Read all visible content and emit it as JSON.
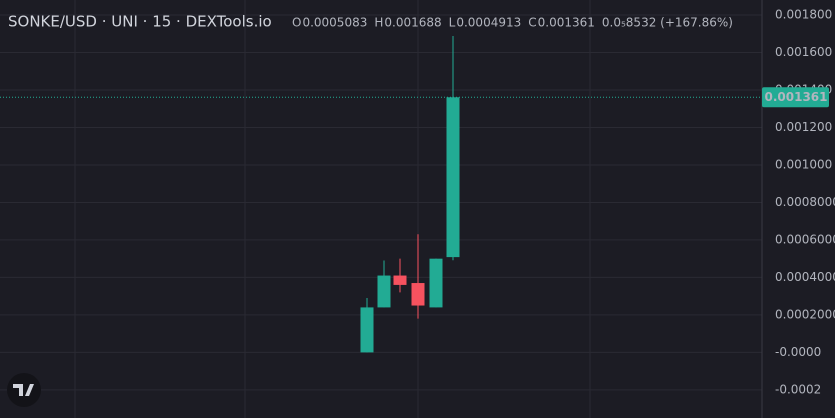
{
  "chart_data": {
    "type": "candlestick",
    "title": "SONKE/USD · UNI · 15 · DEXTools.io",
    "legend_labels": [
      "O",
      "H",
      "L",
      "C"
    ],
    "change_label": "0.0₅8532 (+167.86%)",
    "categories": [
      null,
      null,
      null,
      null,
      null,
      null
    ],
    "open": [
      0.0,
      0.00024,
      0.00041,
      0.00037,
      0.00024,
      0.0005083
    ],
    "high": [
      0.00029,
      0.00049,
      0.0005,
      0.00063,
      0.0005,
      0.001688
    ],
    "low": [
      0.0,
      0.00024,
      0.00032,
      0.00018,
      0.00024,
      0.0004913
    ],
    "close": [
      0.00024,
      0.00041,
      0.00036,
      0.00025,
      0.0005,
      0.001361
    ],
    "up_color": "#22ab94",
    "down_color": "#f7525f",
    "last_price": 0.001361,
    "ylim": [
      -0.00035,
      0.00188
    ],
    "yticks": [
      {
        "value": 0.0018,
        "label": "0.001800"
      },
      {
        "value": 0.0016,
        "label": "0.001600"
      },
      {
        "value": 0.0014,
        "label": "0.001400"
      },
      {
        "value": 0.0012,
        "label": "0.001200"
      },
      {
        "value": 0.001,
        "label": "0.001000"
      },
      {
        "value": 0.0008,
        "label": "0.0008000"
      },
      {
        "value": 0.0006,
        "label": "0.0006000"
      },
      {
        "value": 0.0004,
        "label": "0.0004000"
      },
      {
        "value": 0.0002,
        "label": "0.0002000"
      },
      {
        "value": 0,
        "label": "-0.0000"
      },
      -0.0002
    ],
    "grid": true
  }
}
